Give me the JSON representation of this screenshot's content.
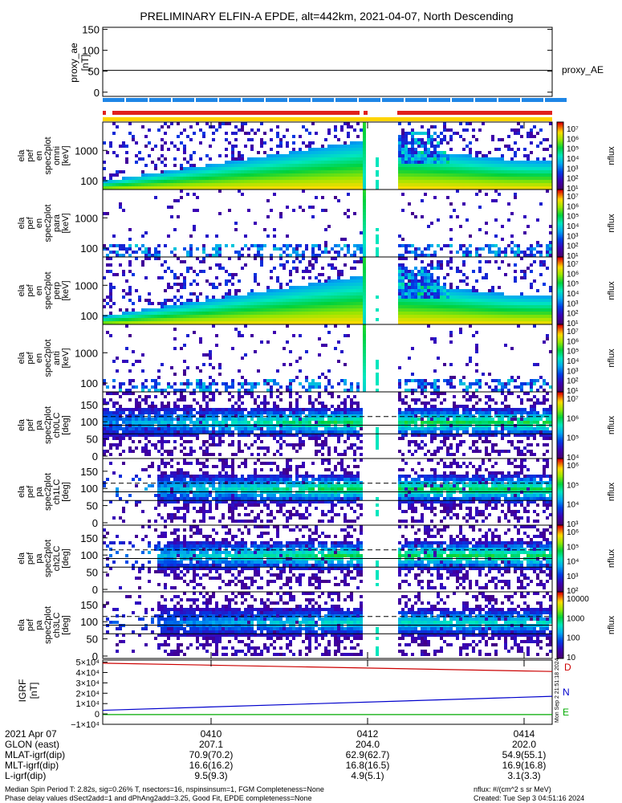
{
  "title": "PRELIMINARY ELFIN-A EPDE, alt=442km, 2021-04-07, North Descending",
  "chart_data": [
    {
      "type": "line",
      "name": "proxy_ae",
      "ylabel": [
        "proxy_ae",
        "[nT]"
      ],
      "series_label": "proxy_AE",
      "yticks": [
        "150",
        "100",
        "50",
        "0"
      ],
      "ytick_values": [
        150,
        100,
        50,
        0
      ],
      "ylim": [
        -10,
        155
      ],
      "series": [
        {
          "name": "proxy_AE",
          "value": 52
        }
      ]
    },
    {
      "type": "heatmap",
      "name": "energy spectrogram omni",
      "ylabel": [
        "ela",
        "pef",
        "en",
        "spec2plot",
        "omni",
        "[keV]"
      ],
      "yticks": [
        "1000",
        "100"
      ],
      "colorbar_label": "nflux",
      "colorbar_ticks": [
        "10⁷",
        "10⁶",
        "10⁵",
        "10⁴",
        "10³",
        "10²",
        "10¹"
      ]
    },
    {
      "type": "heatmap",
      "name": "energy spectrogram para",
      "ylabel": [
        "ela",
        "pef",
        "en",
        "spec2plot",
        "para",
        "[keV]"
      ],
      "yticks": [
        "1000",
        "100"
      ],
      "colorbar_label": "nflux",
      "colorbar_ticks": [
        "10⁷",
        "10⁶",
        "10⁵",
        "10⁴",
        "10³",
        "10²",
        "10¹"
      ]
    },
    {
      "type": "heatmap",
      "name": "energy spectrogram perp",
      "ylabel": [
        "ela",
        "pef",
        "en",
        "spec2plot",
        "perp",
        "[keV]"
      ],
      "yticks": [
        "1000",
        "100"
      ],
      "colorbar_label": "nflux",
      "colorbar_ticks": [
        "10⁷",
        "10⁶",
        "10⁵",
        "10⁴",
        "10³",
        "10²",
        "10¹"
      ]
    },
    {
      "type": "heatmap",
      "name": "energy spectrogram anti",
      "ylabel": [
        "ela",
        "pef",
        "en",
        "spec2plot",
        "anti",
        "[keV]"
      ],
      "yticks": [
        "1000",
        "100"
      ],
      "colorbar_label": "nflux",
      "colorbar_ticks": [
        "10⁷",
        "10⁶",
        "10⁵",
        "10⁴",
        "10³",
        "10²",
        "10¹"
      ]
    },
    {
      "type": "heatmap",
      "name": "pitch angle ch0",
      "ylabel": [
        "ela",
        "pef",
        "pa",
        "spec2plot",
        "ch0LC",
        "[deg]"
      ],
      "yticks": [
        "150",
        "100",
        "50",
        "0"
      ],
      "colorbar_label": "nflux",
      "colorbar_ticks": [
        "10⁷",
        "10⁶",
        "10⁵",
        "10⁴"
      ]
    },
    {
      "type": "heatmap",
      "name": "pitch angle ch1",
      "ylabel": [
        "ela",
        "pef",
        "pa",
        "spec2plot",
        "ch1LC",
        "[deg]"
      ],
      "yticks": [
        "150",
        "100",
        "50",
        "0"
      ],
      "colorbar_label": "nflux",
      "colorbar_ticks": [
        "10⁶",
        "10⁵",
        "10⁴",
        "10³"
      ]
    },
    {
      "type": "heatmap",
      "name": "pitch angle ch2",
      "ylabel": [
        "ela",
        "pef",
        "pa",
        "spec2plot",
        "ch2LC",
        "[deg]"
      ],
      "yticks": [
        "150",
        "100",
        "50",
        "0"
      ],
      "colorbar_label": "nflux",
      "colorbar_ticks": [
        "10⁶",
        "10⁵",
        "10⁴",
        "10³",
        "10²"
      ]
    },
    {
      "type": "heatmap",
      "name": "pitch angle ch3",
      "ylabel": [
        "ela",
        "pef",
        "pa",
        "spec2plot",
        "ch3LC",
        "[deg]"
      ],
      "yticks": [
        "150",
        "100",
        "50",
        "0"
      ],
      "colorbar_label": "nflux",
      "colorbar_ticks": [
        "10000",
        "1000",
        "100",
        "10"
      ]
    },
    {
      "type": "line",
      "name": "IGRF",
      "ylabel": [
        "IGRF",
        "[nT]"
      ],
      "yticks": [
        "5×10⁴",
        "4×10⁴",
        "3×10⁴",
        "2×10⁴",
        "1×10⁴",
        "0",
        "−1×10⁴"
      ],
      "ytick_values": [
        50000,
        40000,
        30000,
        20000,
        10000,
        0,
        -10000
      ],
      "ylim": [
        -10000,
        52000
      ],
      "series": [
        {
          "name": "D",
          "color": "#cc0000",
          "start": 49000,
          "end": 41000
        },
        {
          "name": "N",
          "color": "#0000cc",
          "start": 3500,
          "end": 17000
        },
        {
          "name": "E",
          "color": "#00aa00",
          "start": -600,
          "end": -600
        }
      ],
      "side_note": "Mon Sep  2 21:51:18 2024"
    }
  ],
  "x_axis": {
    "date": "2021 Apr 07",
    "ticks": [
      "0410",
      "0412",
      "0414"
    ],
    "rows": [
      {
        "label": "GLON (east)",
        "values": [
          "207.1",
          "204.0",
          "202.0"
        ]
      },
      {
        "label": "MLAT-igrf(dip)",
        "values": [
          "70.9(70.2)",
          "62.9(62.7)",
          "54.9(55.1)"
        ]
      },
      {
        "label": "MLT-igrf(dip)",
        "values": [
          "16.6(16.2)",
          "16.8(16.5)",
          "16.9(16.8)"
        ]
      },
      {
        "label": "L-igrf(dip)",
        "values": [
          "9.5(9.3)",
          "4.9(5.1)",
          "3.1(3.3)"
        ]
      }
    ]
  },
  "footer": {
    "line1": "Median Spin Period T: 2.82s, sig=0.26% T, nsectors=16, nspinsinsum=1, FGM Completeness=None",
    "line2": "Phase delay values dSect2add=1 and dPhAng2add=3.25, Good Fit, EPDE completeness=None",
    "units": "nflux: #/(cm^2 s sr MeV)",
    "created": "Created: Tue Sep  3 04:51:16 2024"
  },
  "colors": {
    "blue_bar": "#1f86e6",
    "red_bar": "#e0201c",
    "yellow_bar": "#ffd400"
  }
}
